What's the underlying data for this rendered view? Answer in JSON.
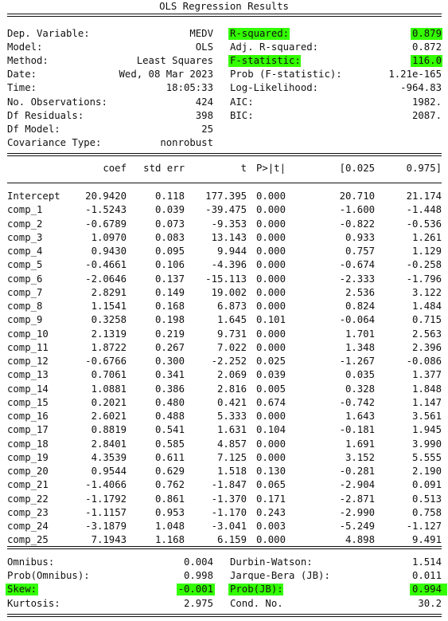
{
  "title": "OLS Regression Results",
  "summary": {
    "left": [
      {
        "label": "Dep. Variable:",
        "value": "MEDV"
      },
      {
        "label": "Model:",
        "value": "OLS"
      },
      {
        "label": "Method:",
        "value": "Least Squares"
      },
      {
        "label": "Date:",
        "value": "Wed, 08 Mar 2023"
      },
      {
        "label": "Time:",
        "value": "18:05:33"
      },
      {
        "label": "No. Observations:",
        "value": "424"
      },
      {
        "label": "Df Residuals:",
        "value": "398"
      },
      {
        "label": "Df Model:",
        "value": "25"
      },
      {
        "label": "Covariance Type:",
        "value": "nonrobust"
      }
    ],
    "right": [
      {
        "label": "R-squared:",
        "value": "0.879",
        "highlight": true
      },
      {
        "label": "Adj. R-squared:",
        "value": "0.872",
        "highlight": false
      },
      {
        "label": "F-statistic:",
        "value": "116.0",
        "highlight": true
      },
      {
        "label": "Prob (F-statistic):",
        "value": "1.21e-165",
        "highlight": false
      },
      {
        "label": "Log-Likelihood:",
        "value": "-964.83",
        "highlight": false
      },
      {
        "label": "AIC:",
        "value": "1982.",
        "highlight": false
      },
      {
        "label": "BIC:",
        "value": "2087.",
        "highlight": false
      }
    ]
  },
  "coef_table": {
    "headers": [
      "coef",
      "std err",
      "t",
      "P>|t|",
      "[0.025",
      "0.975]"
    ],
    "rows": [
      [
        "Intercept",
        "20.9420",
        "0.118",
        "177.395",
        "0.000",
        "20.710",
        "21.174"
      ],
      [
        "comp_1",
        "-1.5243",
        "0.039",
        "-39.475",
        "0.000",
        "-1.600",
        "-1.448"
      ],
      [
        "comp_2",
        "-0.6789",
        "0.073",
        "-9.353",
        "0.000",
        "-0.822",
        "-0.536"
      ],
      [
        "comp_3",
        "1.0970",
        "0.083",
        "13.143",
        "0.000",
        "0.933",
        "1.261"
      ],
      [
        "comp_4",
        "0.9430",
        "0.095",
        "9.944",
        "0.000",
        "0.757",
        "1.129"
      ],
      [
        "comp_5",
        "-0.4661",
        "0.106",
        "-4.396",
        "0.000",
        "-0.674",
        "-0.258"
      ],
      [
        "comp_6",
        "-2.0646",
        "0.137",
        "-15.113",
        "0.000",
        "-2.333",
        "-1.796"
      ],
      [
        "comp_7",
        "2.8291",
        "0.149",
        "19.002",
        "0.000",
        "2.536",
        "3.122"
      ],
      [
        "comp_8",
        "1.1541",
        "0.168",
        "6.873",
        "0.000",
        "0.824",
        "1.484"
      ],
      [
        "comp_9",
        "0.3258",
        "0.198",
        "1.645",
        "0.101",
        "-0.064",
        "0.715"
      ],
      [
        "comp_10",
        "2.1319",
        "0.219",
        "9.731",
        "0.000",
        "1.701",
        "2.563"
      ],
      [
        "comp_11",
        "1.8722",
        "0.267",
        "7.022",
        "0.000",
        "1.348",
        "2.396"
      ],
      [
        "comp_12",
        "-0.6766",
        "0.300",
        "-2.252",
        "0.025",
        "-1.267",
        "-0.086"
      ],
      [
        "comp_13",
        "0.7061",
        "0.341",
        "2.069",
        "0.039",
        "0.035",
        "1.377"
      ],
      [
        "comp_14",
        "1.0881",
        "0.386",
        "2.816",
        "0.005",
        "0.328",
        "1.848"
      ],
      [
        "comp_15",
        "0.2021",
        "0.480",
        "0.421",
        "0.674",
        "-0.742",
        "1.147"
      ],
      [
        "comp_16",
        "2.6021",
        "0.488",
        "5.333",
        "0.000",
        "1.643",
        "3.561"
      ],
      [
        "comp_17",
        "0.8819",
        "0.541",
        "1.631",
        "0.104",
        "-0.181",
        "1.945"
      ],
      [
        "comp_18",
        "2.8401",
        "0.585",
        "4.857",
        "0.000",
        "1.691",
        "3.990"
      ],
      [
        "comp_19",
        "4.3539",
        "0.611",
        "7.125",
        "0.000",
        "3.152",
        "5.555"
      ],
      [
        "comp_20",
        "0.9544",
        "0.629",
        "1.518",
        "0.130",
        "-0.281",
        "2.190"
      ],
      [
        "comp_21",
        "-1.4066",
        "0.762",
        "-1.847",
        "0.065",
        "-2.904",
        "0.091"
      ],
      [
        "comp_22",
        "-1.1792",
        "0.861",
        "-1.370",
        "0.171",
        "-2.871",
        "0.513"
      ],
      [
        "comp_23",
        "-1.1157",
        "0.953",
        "-1.170",
        "0.243",
        "-2.990",
        "0.758"
      ],
      [
        "comp_24",
        "-3.1879",
        "1.048",
        "-3.041",
        "0.003",
        "-5.249",
        "-1.127"
      ],
      [
        "comp_25",
        "7.1943",
        "1.168",
        "6.159",
        "0.000",
        "4.898",
        "9.491"
      ]
    ]
  },
  "diagnostics": {
    "left": [
      {
        "label": "Omnibus:",
        "value": "0.004",
        "highlight": false
      },
      {
        "label": "Prob(Omnibus):",
        "value": "0.998",
        "highlight": false
      },
      {
        "label": "Skew:",
        "value": "-0.001",
        "highlight": true
      },
      {
        "label": "Kurtosis:",
        "value": "2.975",
        "highlight": false
      }
    ],
    "right": [
      {
        "label": "Durbin-Watson:",
        "value": "1.514",
        "highlight": false
      },
      {
        "label": "Jarque-Bera (JB):",
        "value": "0.011",
        "highlight": false
      },
      {
        "label": "Prob(JB):",
        "value": "0.994",
        "highlight": true
      },
      {
        "label": "Cond. No.",
        "value": "30.2",
        "highlight": false
      }
    ]
  },
  "highlight_color": "#33ff00"
}
